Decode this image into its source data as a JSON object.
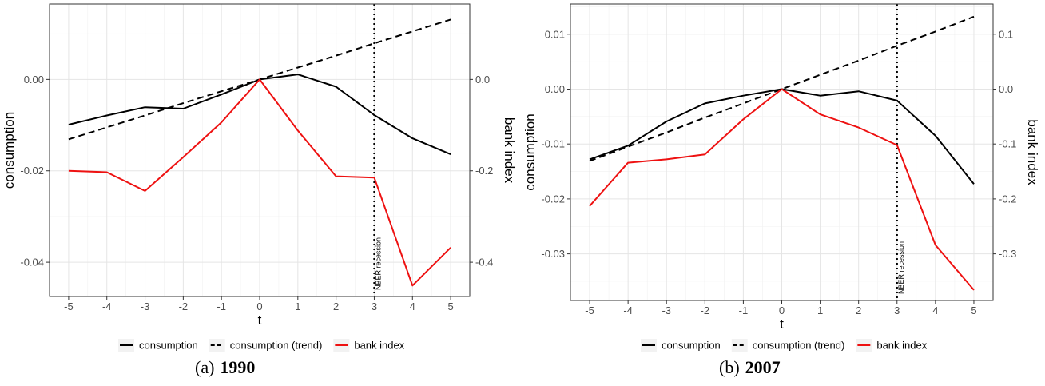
{
  "colors": {
    "consumption": "#000000",
    "trend": "#000000",
    "bank": "#ee1111",
    "grid": "#e5e5e5",
    "frame": "#333333"
  },
  "chart_data": [
    {
      "type": "line",
      "caption_prefix": "(a)",
      "caption_bold": "1990",
      "xlabel": "t",
      "ylabel": "consumption",
      "y2label": "bank index",
      "x": [
        -5,
        -4,
        -3,
        -2,
        -1,
        0,
        1,
        2,
        3,
        4,
        5
      ],
      "xlim": [
        -5.5,
        5.5
      ],
      "ylim": [
        -0.0475,
        0.0165
      ],
      "y2lim": [
        -0.475,
        0.165
      ],
      "y_ticks": [
        0.0,
        -0.02,
        -0.04
      ],
      "y_tick_labels": [
        "0.00",
        "-0.02",
        "-0.04"
      ],
      "y2_ticks": [
        0.0,
        -0.2,
        -0.4
      ],
      "y2_tick_labels": [
        "0.0",
        "-0.2",
        "-0.4"
      ],
      "annotation": {
        "x": 3,
        "text": "NBER recession"
      },
      "series": [
        {
          "name": "consumption",
          "axis": "left",
          "style": "solid",
          "values": [
            -0.0099,
            -0.0079,
            -0.0061,
            -0.0064,
            -0.0033,
            0.0,
            0.0011,
            -0.0016,
            -0.0078,
            -0.0129,
            -0.0164
          ]
        },
        {
          "name": "consumption (trend)",
          "axis": "left",
          "style": "dashed",
          "values": [
            -0.0131,
            -0.0105,
            -0.0079,
            -0.0052,
            -0.0026,
            0.0,
            0.0026,
            0.0052,
            0.0079,
            0.0105,
            0.0131
          ]
        },
        {
          "name": "bank index",
          "axis": "right",
          "style": "solid",
          "values": [
            -0.2,
            -0.203,
            -0.244,
            -0.17,
            -0.094,
            0.0,
            -0.112,
            -0.212,
            -0.215,
            -0.451,
            -0.368
          ]
        }
      ],
      "legend": [
        "consumption",
        "consumption (trend)",
        "bank index"
      ]
    },
    {
      "type": "line",
      "caption_prefix": "(b)",
      "caption_bold": "2007",
      "xlabel": "t",
      "ylabel": "consumption",
      "y2label": "bank index",
      "x": [
        -5,
        -4,
        -3,
        -2,
        -1,
        0,
        1,
        2,
        3,
        4,
        5
      ],
      "xlim": [
        -5.5,
        5.5
      ],
      "ylim": [
        -0.0385,
        0.0155
      ],
      "y2lim": [
        -0.385,
        0.155
      ],
      "y_ticks": [
        0.01,
        0.0,
        -0.01,
        -0.02,
        -0.03
      ],
      "y_tick_labels": [
        "0.01",
        "0.00",
        "-0.01",
        "-0.02",
        "-0.03"
      ],
      "y2_ticks": [
        0.1,
        0.0,
        -0.1,
        -0.2,
        -0.3
      ],
      "y2_tick_labels": [
        "0.1",
        "0.0",
        "-0.1",
        "-0.2",
        "-0.3"
      ],
      "annotation": {
        "x": 3,
        "text": "NBER recession"
      },
      "series": [
        {
          "name": "consumption",
          "axis": "left",
          "style": "solid",
          "values": [
            -0.0128,
            -0.0103,
            -0.0059,
            -0.0026,
            -0.0012,
            0.0,
            -0.0012,
            -0.0004,
            -0.0021,
            -0.0085,
            -0.0173
          ]
        },
        {
          "name": "consumption (trend)",
          "axis": "left",
          "style": "dashed",
          "values": [
            -0.0131,
            -0.0105,
            -0.0079,
            -0.0052,
            -0.0026,
            0.0,
            0.0026,
            0.0052,
            0.0079,
            0.0105,
            0.0132
          ]
        },
        {
          "name": "bank index",
          "axis": "right",
          "style": "solid",
          "values": [
            -0.213,
            -0.134,
            -0.128,
            -0.119,
            -0.055,
            0.0,
            -0.046,
            -0.07,
            -0.102,
            -0.284,
            -0.366
          ]
        }
      ],
      "legend": [
        "consumption",
        "consumption (trend)",
        "bank index"
      ]
    }
  ]
}
